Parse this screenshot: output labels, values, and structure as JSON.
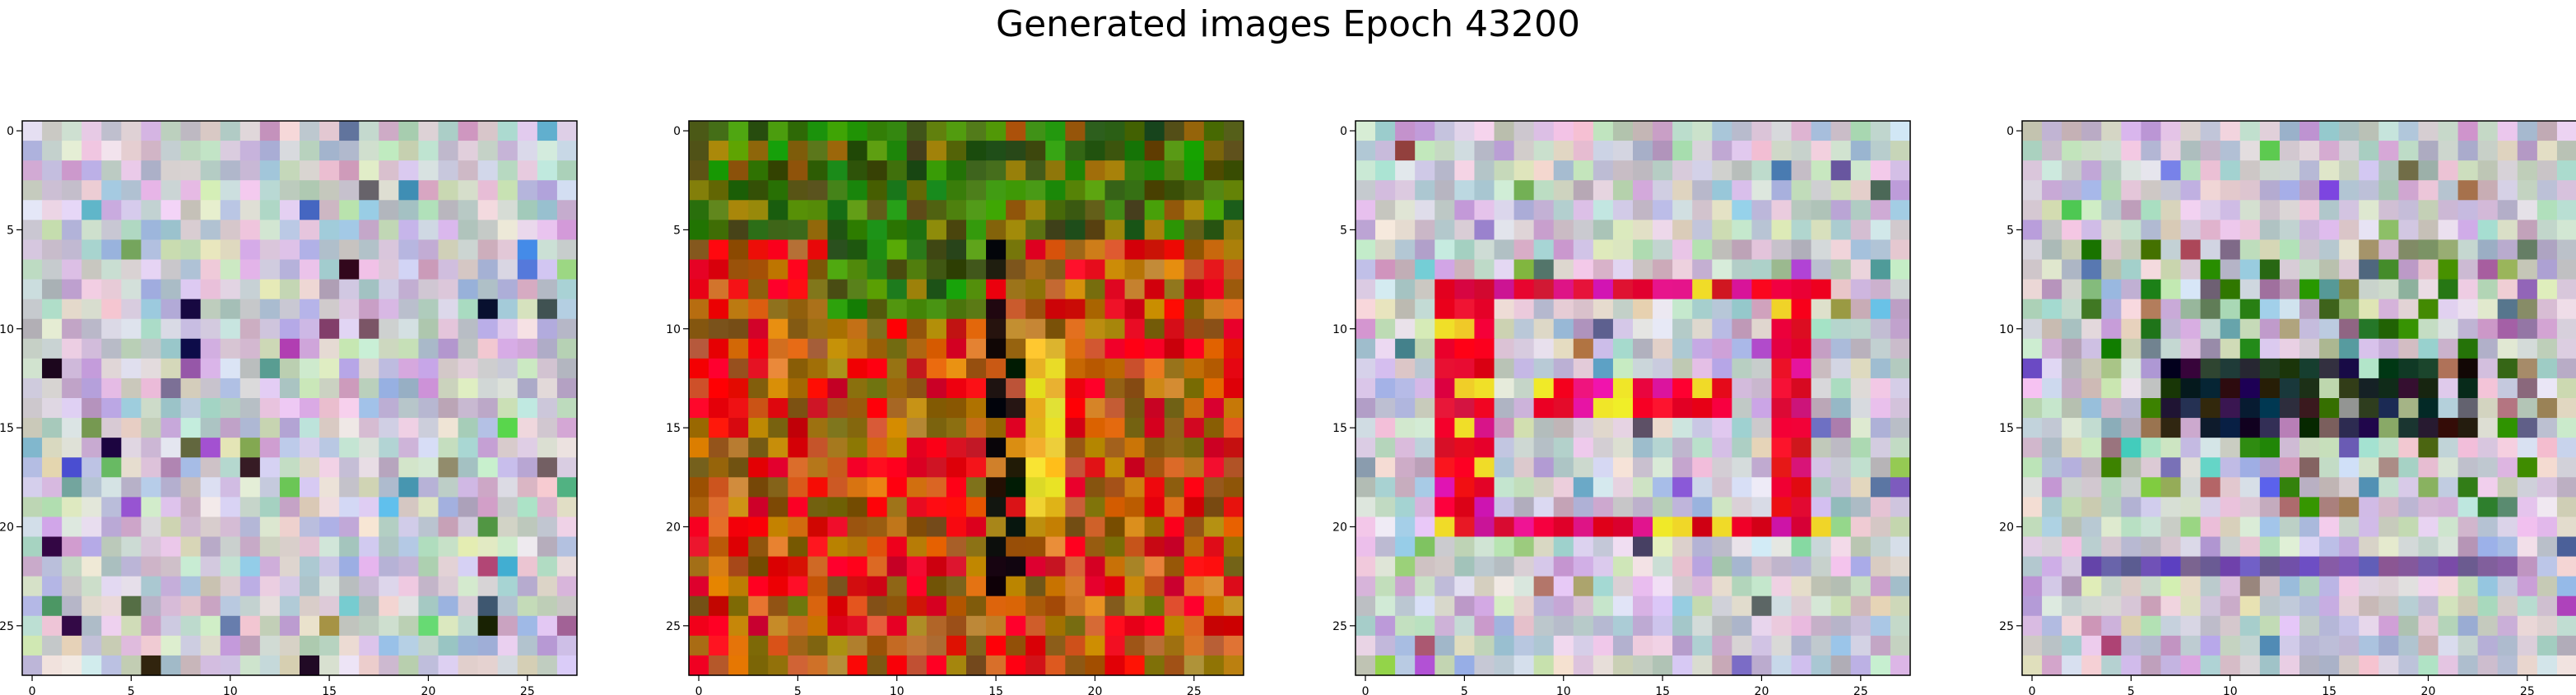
{
  "title": "Generated images Epoch 43200",
  "chart_data": {
    "type": "heatmap",
    "title": "Generated images Epoch 43200",
    "grid_size": 28,
    "x_ticks": [
      0,
      5,
      10,
      15,
      20,
      25
    ],
    "y_ticks": [
      0,
      5,
      10,
      15,
      20,
      25
    ],
    "grid": false,
    "panels": [
      {
        "name": "",
        "style": "noise-pastel"
      },
      {
        "name": "",
        "style": "green-orange-red"
      },
      {
        "name": "",
        "style": "pastel-with-red-ring"
      },
      {
        "name": "",
        "style": "pastel-with-dark-band"
      }
    ],
    "colors": {
      "frame": "#000000",
      "pastel_palette": [
        "#c7b8d6",
        "#d8c6da",
        "#b9c8c5",
        "#cfd9cf",
        "#e3cfe0",
        "#a9bfd6",
        "#c0a6c8",
        "#d5dcc3",
        "#b6d1c0",
        "#e4d8e4"
      ],
      "accent_red": "#e8002a",
      "accent_green": "#2f7d10",
      "accent_orange": "#c8711a"
    }
  }
}
